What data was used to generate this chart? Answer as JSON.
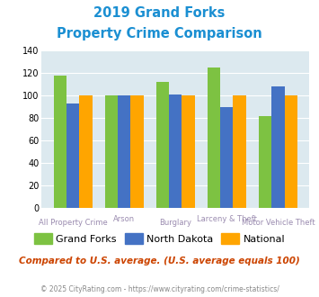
{
  "title_line1": "2019 Grand Forks",
  "title_line2": "Property Crime Comparison",
  "categories": [
    "All Property Crime",
    "Arson",
    "Burglary",
    "Larceny & Theft",
    "Motor Vehicle Theft"
  ],
  "grand_forks": [
    118,
    100,
    112,
    125,
    82
  ],
  "north_dakota": [
    93,
    100,
    101,
    90,
    108
  ],
  "national": [
    100,
    100,
    100,
    100,
    100
  ],
  "color_gf": "#7dc242",
  "color_nd": "#4472c4",
  "color_nat": "#ffa500",
  "ylim": [
    0,
    140
  ],
  "yticks": [
    0,
    20,
    40,
    60,
    80,
    100,
    120,
    140
  ],
  "legend_labels": [
    "Grand Forks",
    "North Dakota",
    "National"
  ],
  "note": "Compared to U.S. average. (U.S. average equals 100)",
  "footer": "© 2025 CityRating.com - https://www.cityrating.com/crime-statistics/",
  "title_color": "#1b8fd2",
  "xlabel_color": "#9b8cb0",
  "note_color": "#cc4400",
  "footer_color": "#888888",
  "footer_link_color": "#1b8fd2",
  "bg_color": "#dce9ef"
}
